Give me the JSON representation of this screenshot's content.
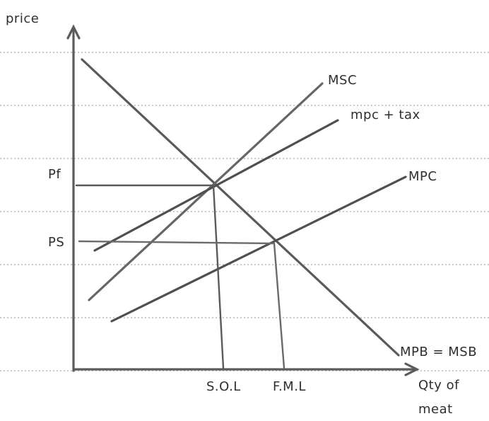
{
  "diagram": {
    "axis_y_label": "price",
    "axis_x_label_line1": "Qty of",
    "axis_x_label_line2": "meat",
    "curves": {
      "msc": "MSC",
      "mpc_tax": "mpc + tax",
      "mpc": "MPC",
      "demand": "MPB = MSB"
    },
    "price_labels": {
      "pf": "Pf",
      "ps": "PS"
    },
    "quantity_labels": {
      "soq": "S.O.L",
      "fmq": "F.M.L"
    },
    "colors": {
      "ink": "#4f4f4f",
      "light_ink": "#6a6a6a",
      "rule": "#b8b8b8",
      "background": "#ffffff"
    }
  }
}
